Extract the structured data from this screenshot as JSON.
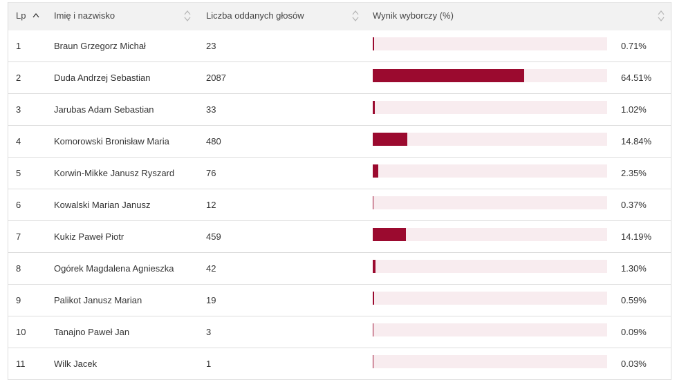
{
  "table": {
    "headers": {
      "lp": "Lp",
      "name": "Imię i nazwisko",
      "votes": "Liczba oddanych głosów",
      "result": "Wynik wyborczy (%)"
    },
    "bar_color": "#9b0a2f",
    "track_color": "#f8ecef",
    "rows": [
      {
        "lp": "1",
        "name": "Braun Grzegorz Michał",
        "votes": "23",
        "pct": "0.71%",
        "pct_value": 0.71
      },
      {
        "lp": "2",
        "name": "Duda Andrzej Sebastian",
        "votes": "2087",
        "pct": "64.51%",
        "pct_value": 64.51
      },
      {
        "lp": "3",
        "name": "Jarubas Adam Sebastian",
        "votes": "33",
        "pct": "1.02%",
        "pct_value": 1.02
      },
      {
        "lp": "4",
        "name": "Komorowski Bronisław Maria",
        "votes": "480",
        "pct": "14.84%",
        "pct_value": 14.84
      },
      {
        "lp": "5",
        "name": "Korwin-Mikke Janusz Ryszard",
        "votes": "76",
        "pct": "2.35%",
        "pct_value": 2.35
      },
      {
        "lp": "6",
        "name": "Kowalski Marian Janusz",
        "votes": "12",
        "pct": "0.37%",
        "pct_value": 0.37
      },
      {
        "lp": "7",
        "name": "Kukiz Paweł Piotr",
        "votes": "459",
        "pct": "14.19%",
        "pct_value": 14.19
      },
      {
        "lp": "8",
        "name": "Ogórek Magdalena Agnieszka",
        "votes": "42",
        "pct": "1.30%",
        "pct_value": 1.3
      },
      {
        "lp": "9",
        "name": "Palikot Janusz Marian",
        "votes": "19",
        "pct": "0.59%",
        "pct_value": 0.59
      },
      {
        "lp": "10",
        "name": "Tanajno Paweł Jan",
        "votes": "3",
        "pct": "0.09%",
        "pct_value": 0.09
      },
      {
        "lp": "11",
        "name": "Wilk Jacek",
        "votes": "1",
        "pct": "0.03%",
        "pct_value": 0.03
      }
    ]
  }
}
